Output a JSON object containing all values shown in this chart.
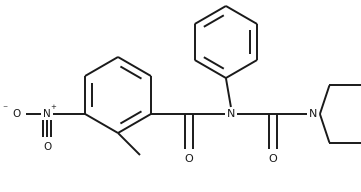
{
  "bg_color": "#ffffff",
  "line_color": "#1a1a1a",
  "line_width": 1.4,
  "figsize": [
    3.61,
    1.92
  ],
  "dpi": 100,
  "xlim": [
    0,
    361
  ],
  "ylim": [
    0,
    192
  ]
}
